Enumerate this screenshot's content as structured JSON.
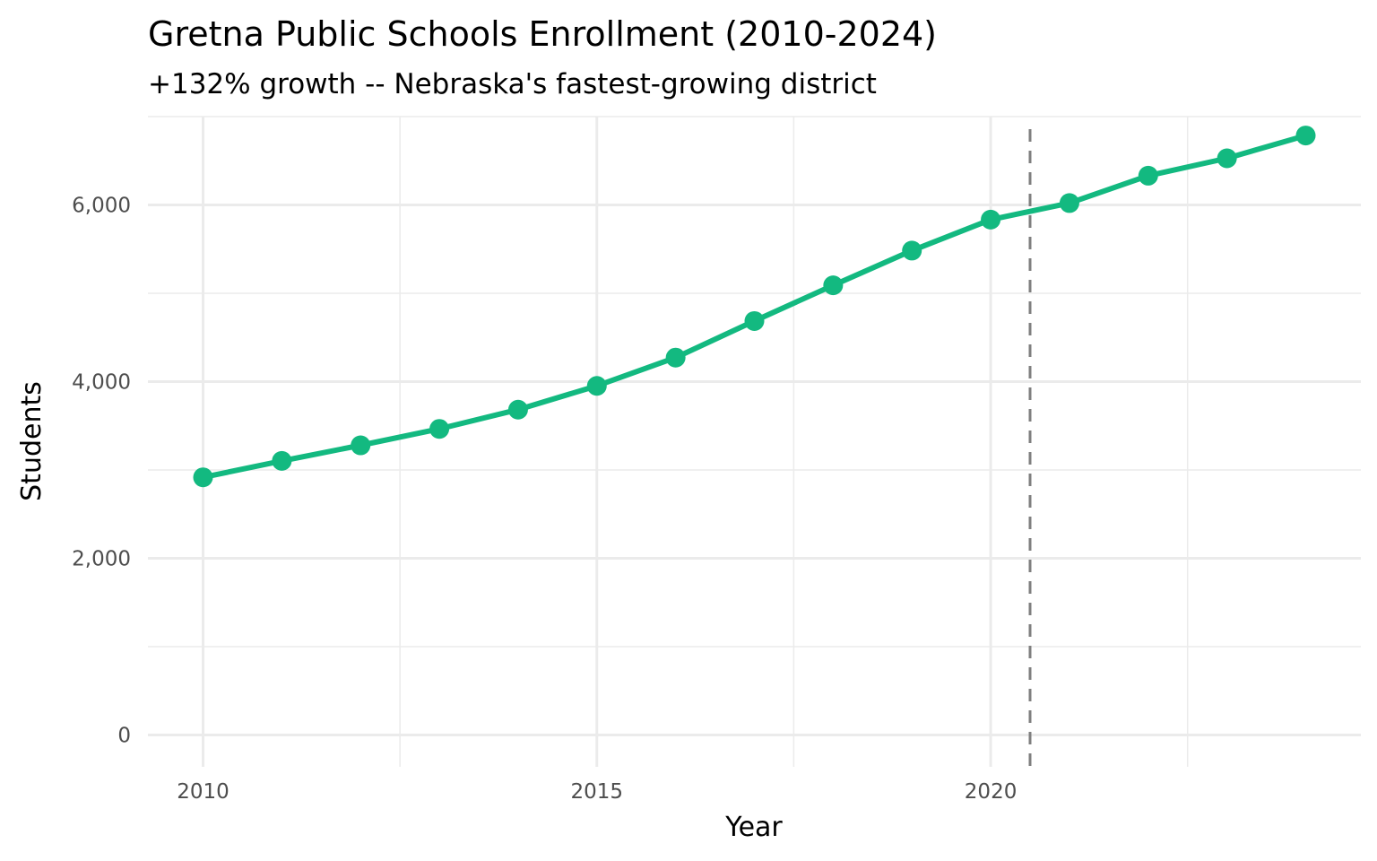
{
  "chart_data": {
    "type": "line",
    "title": "Gretna Public Schools Enrollment (2010-2024)",
    "subtitle": "+132% growth -- Nebraska's fastest-growing district",
    "xlabel": "Year",
    "ylabel": "Students",
    "x": [
      2010,
      2011,
      2012,
      2013,
      2014,
      2015,
      2016,
      2017,
      2018,
      2019,
      2020,
      2021,
      2022,
      2023,
      2024
    ],
    "series": [
      {
        "name": "Enrollment",
        "color": "#13b980",
        "values": [
          2917,
          3103,
          3279,
          3465,
          3683,
          3952,
          4272,
          4686,
          5090,
          5483,
          5834,
          6021,
          6331,
          6528,
          6786
        ]
      }
    ],
    "xlim": [
      2009.3,
      2024.7
    ],
    "ylim": [
      -360,
      7000
    ],
    "x_ticks": [
      {
        "value": 2010,
        "label": "2010"
      },
      {
        "value": 2015,
        "label": "2015"
      },
      {
        "value": 2020,
        "label": "2020"
      }
    ],
    "x_minor_ticks": [
      2012.5,
      2017.5,
      2022.5
    ],
    "y_ticks": [
      {
        "value": 0,
        "label": "0"
      },
      {
        "value": 2000,
        "label": "2,000"
      },
      {
        "value": 4000,
        "label": "4,000"
      },
      {
        "value": 6000,
        "label": "6,000"
      }
    ],
    "y_minor_ticks": [
      1000,
      3000,
      5000,
      7000
    ],
    "reference_line": {
      "orientation": "vertical",
      "x": 2020.5,
      "style": "dashed",
      "color": "#7f7f7f"
    },
    "grid": true,
    "grid_color": "#ebebeb",
    "legend": "none"
  }
}
